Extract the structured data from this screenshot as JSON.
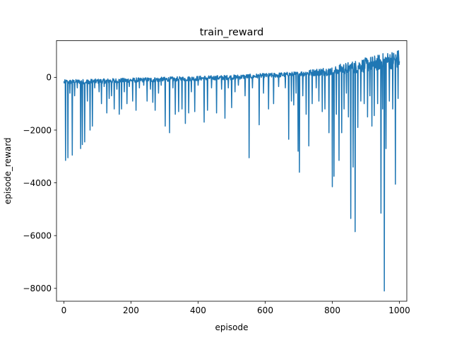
{
  "chart_data": {
    "type": "line",
    "title": "train_reward",
    "xlabel": "episode",
    "ylabel": "episode_reward",
    "xlim": [
      -22,
      1022
    ],
    "ylim": [
      -8488,
      1393
    ],
    "xticks": [
      0,
      200,
      400,
      600,
      800,
      1000
    ],
    "yticks": [
      -8000,
      -6000,
      -4000,
      -2000,
      0
    ],
    "grid": false,
    "line_color": "#1f77b4",
    "baseline": [
      [
        0,
        -180
      ],
      [
        100,
        -150
      ],
      [
        200,
        -110
      ],
      [
        300,
        -80
      ],
      [
        400,
        -40
      ],
      [
        500,
        0
      ],
      [
        600,
        60
      ],
      [
        700,
        130
      ],
      [
        800,
        250
      ],
      [
        860,
        380
      ],
      [
        920,
        520
      ],
      [
        960,
        620
      ],
      [
        1000,
        700
      ]
    ],
    "noise_amplitude": 90,
    "spikes": [
      {
        "x": 5,
        "y": -3150
      },
      {
        "x": 12,
        "y": -3050
      },
      {
        "x": 18,
        "y": -600
      },
      {
        "x": 25,
        "y": -2950
      },
      {
        "x": 32,
        "y": -700
      },
      {
        "x": 40,
        "y": -400
      },
      {
        "x": 50,
        "y": -2700
      },
      {
        "x": 55,
        "y": -2550
      },
      {
        "x": 62,
        "y": -2450
      },
      {
        "x": 70,
        "y": -900
      },
      {
        "x": 78,
        "y": -2000
      },
      {
        "x": 85,
        "y": -1850
      },
      {
        "x": 92,
        "y": -400
      },
      {
        "x": 105,
        "y": -550
      },
      {
        "x": 112,
        "y": -1000
      },
      {
        "x": 120,
        "y": -350
      },
      {
        "x": 128,
        "y": -1350
      },
      {
        "x": 135,
        "y": -800
      },
      {
        "x": 142,
        "y": -700
      },
      {
        "x": 150,
        "y": -1200
      },
      {
        "x": 158,
        "y": -450
      },
      {
        "x": 165,
        "y": -1400
      },
      {
        "x": 172,
        "y": -1200
      },
      {
        "x": 180,
        "y": -550
      },
      {
        "x": 188,
        "y": -1000
      },
      {
        "x": 195,
        "y": -350
      },
      {
        "x": 205,
        "y": -900
      },
      {
        "x": 215,
        "y": -1250
      },
      {
        "x": 225,
        "y": -400
      },
      {
        "x": 238,
        "y": -300
      },
      {
        "x": 248,
        "y": -900
      },
      {
        "x": 258,
        "y": -450
      },
      {
        "x": 265,
        "y": -950
      },
      {
        "x": 272,
        "y": -1250
      },
      {
        "x": 282,
        "y": -600
      },
      {
        "x": 290,
        "y": -300
      },
      {
        "x": 302,
        "y": -1850
      },
      {
        "x": 315,
        "y": -2100
      },
      {
        "x": 325,
        "y": -400
      },
      {
        "x": 332,
        "y": -1400
      },
      {
        "x": 342,
        "y": -1300
      },
      {
        "x": 352,
        "y": -1200
      },
      {
        "x": 362,
        "y": -1750
      },
      {
        "x": 372,
        "y": -1350
      },
      {
        "x": 380,
        "y": -550
      },
      {
        "x": 390,
        "y": -1300
      },
      {
        "x": 400,
        "y": -300
      },
      {
        "x": 418,
        "y": -1700
      },
      {
        "x": 428,
        "y": -1250
      },
      {
        "x": 440,
        "y": -400
      },
      {
        "x": 455,
        "y": -1350
      },
      {
        "x": 470,
        "y": -450
      },
      {
        "x": 480,
        "y": -1550
      },
      {
        "x": 490,
        "y": -400
      },
      {
        "x": 500,
        "y": -1150
      },
      {
        "x": 510,
        "y": -550
      },
      {
        "x": 520,
        "y": -300
      },
      {
        "x": 540,
        "y": -700
      },
      {
        "x": 552,
        "y": -3050
      },
      {
        "x": 562,
        "y": -400
      },
      {
        "x": 582,
        "y": -1800
      },
      {
        "x": 595,
        "y": -600
      },
      {
        "x": 610,
        "y": -1200
      },
      {
        "x": 625,
        "y": -1000
      },
      {
        "x": 640,
        "y": -350
      },
      {
        "x": 660,
        "y": -400
      },
      {
        "x": 670,
        "y": -2350
      },
      {
        "x": 678,
        "y": -900
      },
      {
        "x": 685,
        "y": -1050
      },
      {
        "x": 692,
        "y": -600
      },
      {
        "x": 698,
        "y": -2800
      },
      {
        "x": 702,
        "y": -3600
      },
      {
        "x": 712,
        "y": -700
      },
      {
        "x": 722,
        "y": -1400
      },
      {
        "x": 730,
        "y": -2600
      },
      {
        "x": 740,
        "y": -1000
      },
      {
        "x": 752,
        "y": -400
      },
      {
        "x": 760,
        "y": -900
      },
      {
        "x": 770,
        "y": -1300
      },
      {
        "x": 778,
        "y": -1200
      },
      {
        "x": 790,
        "y": -2100
      },
      {
        "x": 800,
        "y": -4150
      },
      {
        "x": 805,
        "y": -3750
      },
      {
        "x": 812,
        "y": -1400
      },
      {
        "x": 820,
        "y": -3150
      },
      {
        "x": 828,
        "y": -2100
      },
      {
        "x": 835,
        "y": -1200
      },
      {
        "x": 842,
        "y": -600
      },
      {
        "x": 848,
        "y": -1500
      },
      {
        "x": 855,
        "y": -5350
      },
      {
        "x": 862,
        "y": -3400
      },
      {
        "x": 868,
        "y": -5850
      },
      {
        "x": 876,
        "y": -1900
      },
      {
        "x": 885,
        "y": -900
      },
      {
        "x": 895,
        "y": -1000
      },
      {
        "x": 905,
        "y": -1500
      },
      {
        "x": 912,
        "y": -700
      },
      {
        "x": 918,
        "y": -1850
      },
      {
        "x": 925,
        "y": -1450
      },
      {
        "x": 935,
        "y": -1000
      },
      {
        "x": 945,
        "y": -5150
      },
      {
        "x": 950,
        "y": -1200
      },
      {
        "x": 955,
        "y": -8100
      },
      {
        "x": 960,
        "y": -2700
      },
      {
        "x": 970,
        "y": -900
      },
      {
        "x": 980,
        "y": -1200
      },
      {
        "x": 988,
        "y": -4050
      },
      {
        "x": 996,
        "y": -800
      }
    ]
  }
}
